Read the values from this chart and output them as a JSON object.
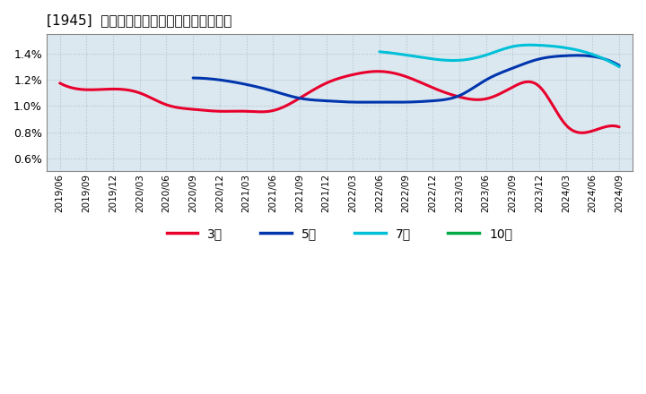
{
  "title": "[1945]  経常利益マージンの標準偏差の推移",
  "background_color": "#ffffff",
  "plot_bg_color": "#dce8f0",
  "grid_color": "#b0c4d0",
  "ylim": [
    0.005,
    0.0155
  ],
  "yticks": [
    0.006,
    0.008,
    0.01,
    0.012,
    0.014
  ],
  "xtick_labels": [
    "2019/06",
    "2019/09",
    "2019/12",
    "2020/03",
    "2020/06",
    "2020/09",
    "2020/12",
    "2021/03",
    "2021/06",
    "2021/09",
    "2021/12",
    "2022/03",
    "2022/06",
    "2022/09",
    "2022/12",
    "2023/03",
    "2023/06",
    "2023/09",
    "2023/12",
    "2024/03",
    "2024/06",
    "2024/09"
  ],
  "series": {
    "3年": {
      "color": "#e8002d",
      "linewidth": 2.2,
      "values": [
        0.01175,
        0.01125,
        0.0113,
        0.011,
        0.0101,
        0.00975,
        0.0096,
        0.0096,
        0.00965,
        0.0106,
        0.01175,
        0.0124,
        0.01265,
        0.01225,
        0.0114,
        0.0107,
        0.01055,
        0.01145,
        0.0115,
        0.00855,
        0.0081,
        0.0084
      ]
    },
    "5年": {
      "color": "#0035ad",
      "linewidth": 2.2,
      "values": [
        null,
        null,
        null,
        null,
        null,
        0.01215,
        0.012,
        0.01165,
        0.01115,
        0.0106,
        0.0104,
        0.0103,
        0.0103,
        0.0103,
        0.0104,
        0.0108,
        0.012,
        0.0129,
        0.0136,
        0.01385,
        0.0138,
        0.0131
      ]
    },
    "7年": {
      "color": "#00c0d8",
      "linewidth": 2.2,
      "values": [
        null,
        null,
        null,
        null,
        null,
        null,
        null,
        null,
        null,
        null,
        null,
        null,
        0.01415,
        0.0139,
        0.0136,
        0.0135,
        0.0139,
        0.01455,
        0.01465,
        0.01445,
        0.01395,
        0.013
      ]
    },
    "10年": {
      "color": "#00aa44",
      "linewidth": 2.2,
      "values": [
        null,
        null,
        null,
        null,
        null,
        null,
        null,
        null,
        null,
        null,
        null,
        null,
        null,
        null,
        null,
        null,
        null,
        null,
        null,
        null,
        null,
        null
      ]
    }
  },
  "legend_entries": [
    "3年",
    "5年",
    "7年",
    "10年"
  ],
  "legend_colors": [
    "#e8002d",
    "#0035ad",
    "#00c0d8",
    "#00aa44"
  ]
}
